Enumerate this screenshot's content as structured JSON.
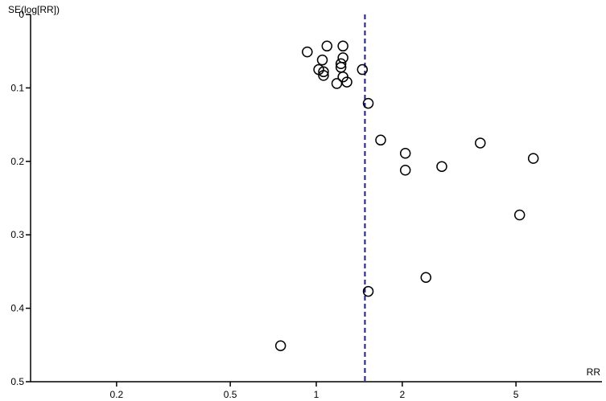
{
  "chart_data": {
    "type": "scatter",
    "title": "",
    "xlabel": "RR",
    "ylabel": "SE(log[RR])",
    "x_scale": "log",
    "xlim": [
      0.1,
      10
    ],
    "ylim": [
      0,
      0.5
    ],
    "y_inverted": true,
    "x_ticks": [
      0.2,
      0.5,
      1,
      2,
      5
    ],
    "x_tick_labels": [
      "0.2",
      "0.5",
      "1",
      "2",
      "5"
    ],
    "y_ticks": [
      0,
      0.1,
      0.2,
      0.3,
      0.4,
      0.5
    ],
    "y_tick_labels": [
      "0",
      "0.1",
      "0.2",
      "0.3",
      "0.4",
      "0.5"
    ],
    "reference_line": {
      "x": 1.48,
      "style": "dashed",
      "color": "#1a1a9c"
    },
    "grid": false,
    "series": [
      {
        "marker": "open-circle",
        "points": [
          {
            "x": 0.93,
            "y": 0.051
          },
          {
            "x": 1.09,
            "y": 0.043
          },
          {
            "x": 1.24,
            "y": 0.043
          },
          {
            "x": 1.05,
            "y": 0.062
          },
          {
            "x": 1.24,
            "y": 0.059
          },
          {
            "x": 1.22,
            "y": 0.067
          },
          {
            "x": 1.22,
            "y": 0.072
          },
          {
            "x": 1.02,
            "y": 0.075
          },
          {
            "x": 1.06,
            "y": 0.078
          },
          {
            "x": 1.06,
            "y": 0.083
          },
          {
            "x": 1.24,
            "y": 0.085
          },
          {
            "x": 1.28,
            "y": 0.092
          },
          {
            "x": 1.18,
            "y": 0.094
          },
          {
            "x": 1.45,
            "y": 0.075
          },
          {
            "x": 1.52,
            "y": 0.121
          },
          {
            "x": 1.68,
            "y": 0.171
          },
          {
            "x": 2.05,
            "y": 0.189
          },
          {
            "x": 2.05,
            "y": 0.212
          },
          {
            "x": 2.75,
            "y": 0.207
          },
          {
            "x": 3.75,
            "y": 0.175
          },
          {
            "x": 5.75,
            "y": 0.196
          },
          {
            "x": 5.15,
            "y": 0.273
          },
          {
            "x": 2.42,
            "y": 0.358
          },
          {
            "x": 1.52,
            "y": 0.377
          },
          {
            "x": 0.75,
            "y": 0.451
          }
        ]
      }
    ]
  }
}
